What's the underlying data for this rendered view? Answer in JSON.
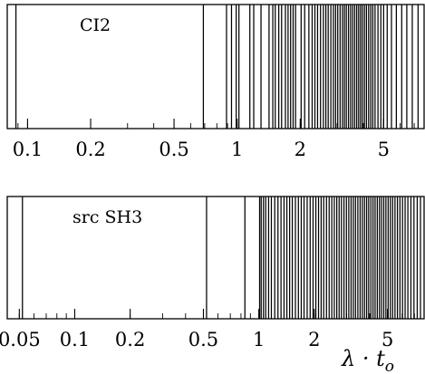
{
  "chart_data": [
    {
      "type": "spike",
      "panel_label": "CI2",
      "x_scale": "log",
      "xlim": [
        0.08,
        7.8
      ],
      "x_ticks": [
        0.1,
        0.2,
        0.5,
        1,
        2,
        5
      ],
      "x_tick_labels": [
        "0.1",
        "0.2",
        "0.5",
        "1",
        "2",
        "5"
      ],
      "values": [
        0.088,
        0.69,
        0.89,
        0.94,
        0.99,
        1.02,
        1.15,
        1.2,
        1.3,
        1.42,
        1.48,
        1.52,
        1.58,
        1.63,
        1.7,
        1.75,
        1.8,
        1.85,
        1.9,
        2.02,
        2.1,
        2.2,
        2.28,
        2.35,
        2.42,
        2.5,
        2.58,
        2.65,
        2.72,
        2.8,
        2.88,
        2.95,
        3.02,
        3.1,
        3.18,
        3.25,
        3.32,
        3.4,
        3.48,
        3.56,
        3.64,
        3.72,
        3.8,
        3.88,
        3.96,
        4.05,
        4.14,
        4.24,
        4.34,
        4.44,
        4.55,
        4.7,
        4.85,
        5.0,
        5.2,
        5.45,
        5.75,
        6.1,
        6.45,
        6.85,
        7.3
      ]
    },
    {
      "type": "spike",
      "panel_label": "src SH3",
      "x_scale": "log",
      "xlim": [
        0.043,
        7.9
      ],
      "x_ticks": [
        0.05,
        0.1,
        0.2,
        0.5,
        1,
        2,
        5
      ],
      "x_tick_labels": [
        "0.05",
        "0.1",
        "0.2",
        "0.5",
        "1",
        "2",
        "5"
      ],
      "xlabel": "λ · t_o",
      "values": [
        0.052,
        0.52,
        0.84,
        1.01,
        1.03,
        1.06,
        1.09,
        1.13,
        1.17,
        1.22,
        1.27,
        1.32,
        1.37,
        1.42,
        1.47,
        1.52,
        1.58,
        1.64,
        1.7,
        1.76,
        1.83,
        1.9,
        1.97,
        2.04,
        2.11,
        2.18,
        2.25,
        2.33,
        2.41,
        2.49,
        2.57,
        2.65,
        2.73,
        2.81,
        2.9,
        2.99,
        3.08,
        3.17,
        3.26,
        3.35,
        3.45,
        3.55,
        3.65,
        3.75,
        3.85,
        3.95,
        4.06,
        4.17,
        4.28,
        4.4,
        4.52,
        4.64,
        4.77,
        4.9,
        5.04,
        5.18,
        5.33,
        5.49,
        5.66,
        5.84,
        6.03,
        6.23,
        6.45,
        6.7,
        6.96,
        7.25,
        7.55
      ]
    }
  ]
}
